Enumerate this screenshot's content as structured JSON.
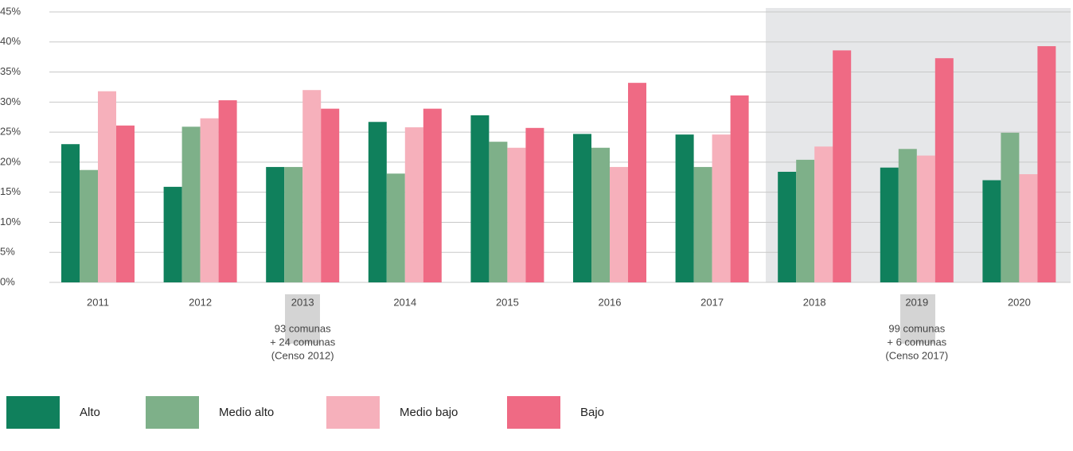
{
  "chart_data": {
    "type": "bar",
    "categories": [
      "2011",
      "2012",
      "2013",
      "2014",
      "2015",
      "2016",
      "2017",
      "2018",
      "2019",
      "2020"
    ],
    "series": [
      {
        "name": "Alto",
        "color": "#10805c",
        "values": [
          23.0,
          15.9,
          19.2,
          26.7,
          27.8,
          24.7,
          24.6,
          18.4,
          19.1,
          17.0
        ]
      },
      {
        "name": "Medio alto",
        "color": "#7eb089",
        "values": [
          18.7,
          25.9,
          19.2,
          18.1,
          23.4,
          22.4,
          19.2,
          20.4,
          22.2,
          24.9
        ]
      },
      {
        "name": "Medio bajo",
        "color": "#f6b0bb",
        "values": [
          31.8,
          27.3,
          32.0,
          25.8,
          22.4,
          19.2,
          24.6,
          22.6,
          21.1,
          18.0
        ]
      },
      {
        "name": "Bajo",
        "color": "#ef6a84",
        "values": [
          26.1,
          30.3,
          28.9,
          28.9,
          25.7,
          33.2,
          31.1,
          38.6,
          37.3,
          39.3
        ]
      }
    ],
    "ylim": [
      0,
      45
    ],
    "yticks": [
      {
        "value": 0,
        "label": "0%"
      },
      {
        "value": 5,
        "label": "5%"
      },
      {
        "value": 10,
        "label": "10%"
      },
      {
        "value": 15,
        "label": "15%"
      },
      {
        "value": 20,
        "label": "20%"
      },
      {
        "value": 25,
        "label": "25%"
      },
      {
        "value": 30,
        "label": "30%"
      },
      {
        "value": 35,
        "label": "35%"
      },
      {
        "value": 40,
        "label": "40%"
      },
      {
        "value": 45,
        "label": "45%"
      }
    ],
    "grid": true,
    "annotations": [
      {
        "lines": [
          "93 comunas",
          "+ 24 comunas",
          "(Censo 2012)"
        ]
      },
      {
        "lines": [
          "99 comunas",
          "+ 6 comunas",
          "(Censo 2017)"
        ]
      }
    ]
  }
}
